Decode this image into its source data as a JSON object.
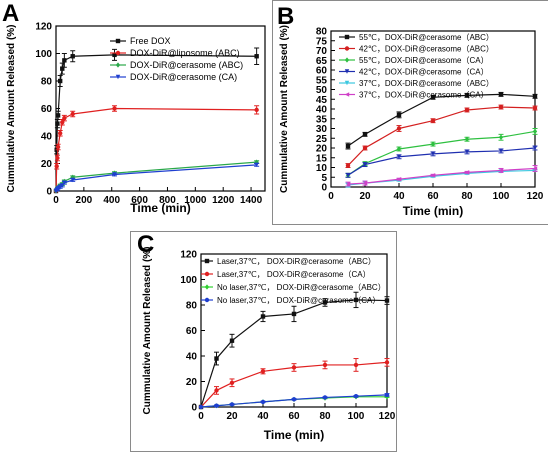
{
  "panels": [
    {
      "id": "A",
      "letter": "A",
      "chart_data": {
        "type": "line",
        "xlabel": "Time (min)",
        "ylabel": "Cummulative Amount Released (%)",
        "xlim": [
          0,
          1500
        ],
        "ylim": [
          0,
          120
        ],
        "xticks": [
          0,
          200,
          400,
          600,
          800,
          1000,
          1200,
          1400
        ],
        "yticks": [
          0,
          20,
          40,
          60,
          80,
          100,
          120
        ],
        "legend_position": "top-right",
        "series": [
          {
            "name": "Free DOX",
            "color": "#111111",
            "marker": "square",
            "x": [
              0,
              5,
              10,
              15,
              30,
              45,
              60,
              120,
              420,
              1440
            ],
            "y": [
              0,
              30,
              49,
              55,
              80,
              89,
              95,
              98,
              99,
              98
            ],
            "err": [
              0,
              3,
              3,
              3,
              4,
              4,
              5,
              4,
              4,
              6
            ]
          },
          {
            "name": "DOX-DiR@liposome (ABC)",
            "color": "#e02020",
            "marker": "circle",
            "x": [
              0,
              5,
              10,
              15,
              30,
              45,
              60,
              120,
              420,
              1440
            ],
            "y": [
              0,
              18,
              24,
              32,
              42,
              50,
              53,
              56,
              60,
              59
            ],
            "err": [
              0,
              2,
              2,
              2,
              2,
              2,
              2,
              2,
              2,
              3
            ]
          },
          {
            "name": "DOX-DiR@cerasome (ABC)",
            "color": "#2aa84a",
            "marker": "diamond",
            "x": [
              0,
              5,
              10,
              15,
              30,
              45,
              60,
              120,
              420,
              1440
            ],
            "y": [
              0,
              1,
              2,
              3,
              4,
              5,
              7,
              10,
              13,
              21
            ],
            "err": [
              0,
              0.5,
              0.5,
              0.5,
              1,
              1,
              1,
              1,
              1,
              1
            ]
          },
          {
            "name": "DOX-DiR@cerasome (CA)",
            "color": "#1f3fd0",
            "marker": "triangle-down",
            "x": [
              0,
              5,
              10,
              15,
              30,
              45,
              60,
              120,
              420,
              1440
            ],
            "y": [
              0,
              0.5,
              1,
              2,
              3,
              4,
              6,
              8,
              12,
              19
            ],
            "err": [
              0,
              0.5,
              0.5,
              0.5,
              1,
              1,
              1,
              1,
              1,
              1
            ]
          }
        ]
      }
    },
    {
      "id": "B",
      "letter": "B",
      "chart_data": {
        "type": "line",
        "xlabel": "Time (min)",
        "ylabel": "Cummulative Amount Released (%)",
        "xlim": [
          0,
          120
        ],
        "ylim": [
          0,
          80
        ],
        "xticks": [
          0,
          20,
          40,
          60,
          80,
          100,
          120
        ],
        "yticks": [
          0,
          5,
          10,
          15,
          20,
          25,
          30,
          35,
          40,
          45,
          50,
          55,
          60,
          65,
          70,
          75,
          80
        ],
        "legend_position": "top-left",
        "series": [
          {
            "name": "55℃，DOX-DiR@cerasome（ABC）",
            "color": "#111111",
            "marker": "square",
            "x": [
              10,
              20,
              40,
              60,
              80,
              100,
              120
            ],
            "y": [
              21,
              27,
              37,
              46,
              47,
              47.5,
              46.5
            ],
            "err": [
              1.5,
              1,
              1.5,
              1,
              1,
              1,
              1
            ]
          },
          {
            "name": "42℃，DOX-DiR@cerasome（ABC）",
            "color": "#d42020",
            "marker": "circle",
            "x": [
              10,
              20,
              40,
              60,
              80,
              100,
              120
            ],
            "y": [
              11,
              20,
              30,
              34,
              39.5,
              41,
              40.5
            ],
            "err": [
              1,
              1,
              1.5,
              1,
              1,
              1,
              1
            ]
          },
          {
            "name": "55℃，DOX-DiR@cerasome（CA）",
            "color": "#2ec040",
            "marker": "diamond",
            "x": [
              10,
              20,
              40,
              60,
              80,
              100,
              120
            ],
            "y": [
              6,
              12,
              19.5,
              22,
              24.5,
              25.5,
              28.5
            ],
            "err": [
              1,
              1,
              1,
              1,
              1,
              1.5,
              1.5
            ]
          },
          {
            "name": "42℃，DOX-DiR@cerasome（CA）",
            "color": "#1f2fb0",
            "marker": "triangle-down",
            "x": [
              10,
              20,
              40,
              60,
              80,
              100,
              120
            ],
            "y": [
              6,
              11.5,
              15.5,
              17,
              18,
              18.5,
              20
            ],
            "err": [
              1,
              1,
              1,
              1,
              1,
              1,
              1
            ]
          },
          {
            "name": "37℃，DOX-DiR@cerasome（ABC）",
            "color": "#3cc8e0",
            "marker": "triangle-down",
            "x": [
              10,
              20,
              40,
              60,
              80,
              100,
              120
            ],
            "y": [
              1,
              2,
              3.5,
              5.5,
              7,
              8,
              8.5
            ],
            "err": [
              1,
              1,
              0.5,
              0.5,
              0.5,
              0.5,
              0.5
            ]
          },
          {
            "name": "37℃，DOX-DiR@cerasome（CA）",
            "color": "#d040c8",
            "marker": "triangle-left",
            "x": [
              10,
              20,
              40,
              60,
              80,
              100,
              120
            ],
            "y": [
              1.5,
              2,
              4,
              6,
              7.5,
              8.5,
              9.5
            ],
            "err": [
              1,
              1,
              0.5,
              0.5,
              0.5,
              1,
              1.5
            ]
          }
        ]
      }
    },
    {
      "id": "C",
      "letter": "C",
      "chart_data": {
        "type": "line",
        "xlabel": "Time (min)",
        "ylabel": "Cummulative Amount Released (%)",
        "xlim": [
          0,
          120
        ],
        "ylim": [
          0,
          120
        ],
        "xticks": [
          0,
          20,
          40,
          60,
          80,
          100,
          120
        ],
        "yticks": [
          0,
          20,
          40,
          60,
          80,
          100,
          120
        ],
        "legend_position": "top-left",
        "series": [
          {
            "name": "Laser,37℃， DOX-DiR@cerasome（ABC）",
            "color": "#111111",
            "marker": "square",
            "x": [
              0,
              10,
              20,
              40,
              60,
              80,
              100,
              120
            ],
            "y": [
              0,
              38,
              52,
              71,
              73,
              82,
              84,
              83.5
            ],
            "err": [
              0,
              5,
              5,
              4,
              6,
              3,
              6,
              3
            ]
          },
          {
            "name": "Laser,37℃， DOX-DiR@cerasome（CA）",
            "color": "#e02020",
            "marker": "circle",
            "x": [
              0,
              10,
              20,
              40,
              60,
              80,
              100,
              120
            ],
            "y": [
              0,
              13,
              19,
              28,
              31,
              33,
              33,
              35
            ],
            "err": [
              0,
              3,
              3,
              2,
              3,
              3,
              5,
              3
            ]
          },
          {
            "name": "No laser,37℃， DOX-DiR@cerasome（ABC）",
            "color": "#30d030",
            "marker": "diamond",
            "x": [
              0,
              10,
              20,
              40,
              60,
              80,
              100,
              120
            ],
            "y": [
              0,
              1,
              2,
              4,
              6,
              7,
              8,
              8
            ],
            "err": [
              0,
              0.5,
              0.5,
              0.5,
              0.5,
              0.5,
              0.5,
              0.5
            ]
          },
          {
            "name": "No laser,37℃， DOX-DiR@cerasome（CA）",
            "color": "#1f3fd0",
            "marker": "circle",
            "x": [
              0,
              10,
              20,
              40,
              60,
              80,
              100,
              120
            ],
            "y": [
              0,
              1,
              2,
              4,
              6,
              7.5,
              8.5,
              9.5
            ],
            "err": [
              0,
              0.5,
              0.5,
              0.5,
              0.5,
              0.5,
              0.5,
              1
            ]
          }
        ]
      }
    }
  ]
}
